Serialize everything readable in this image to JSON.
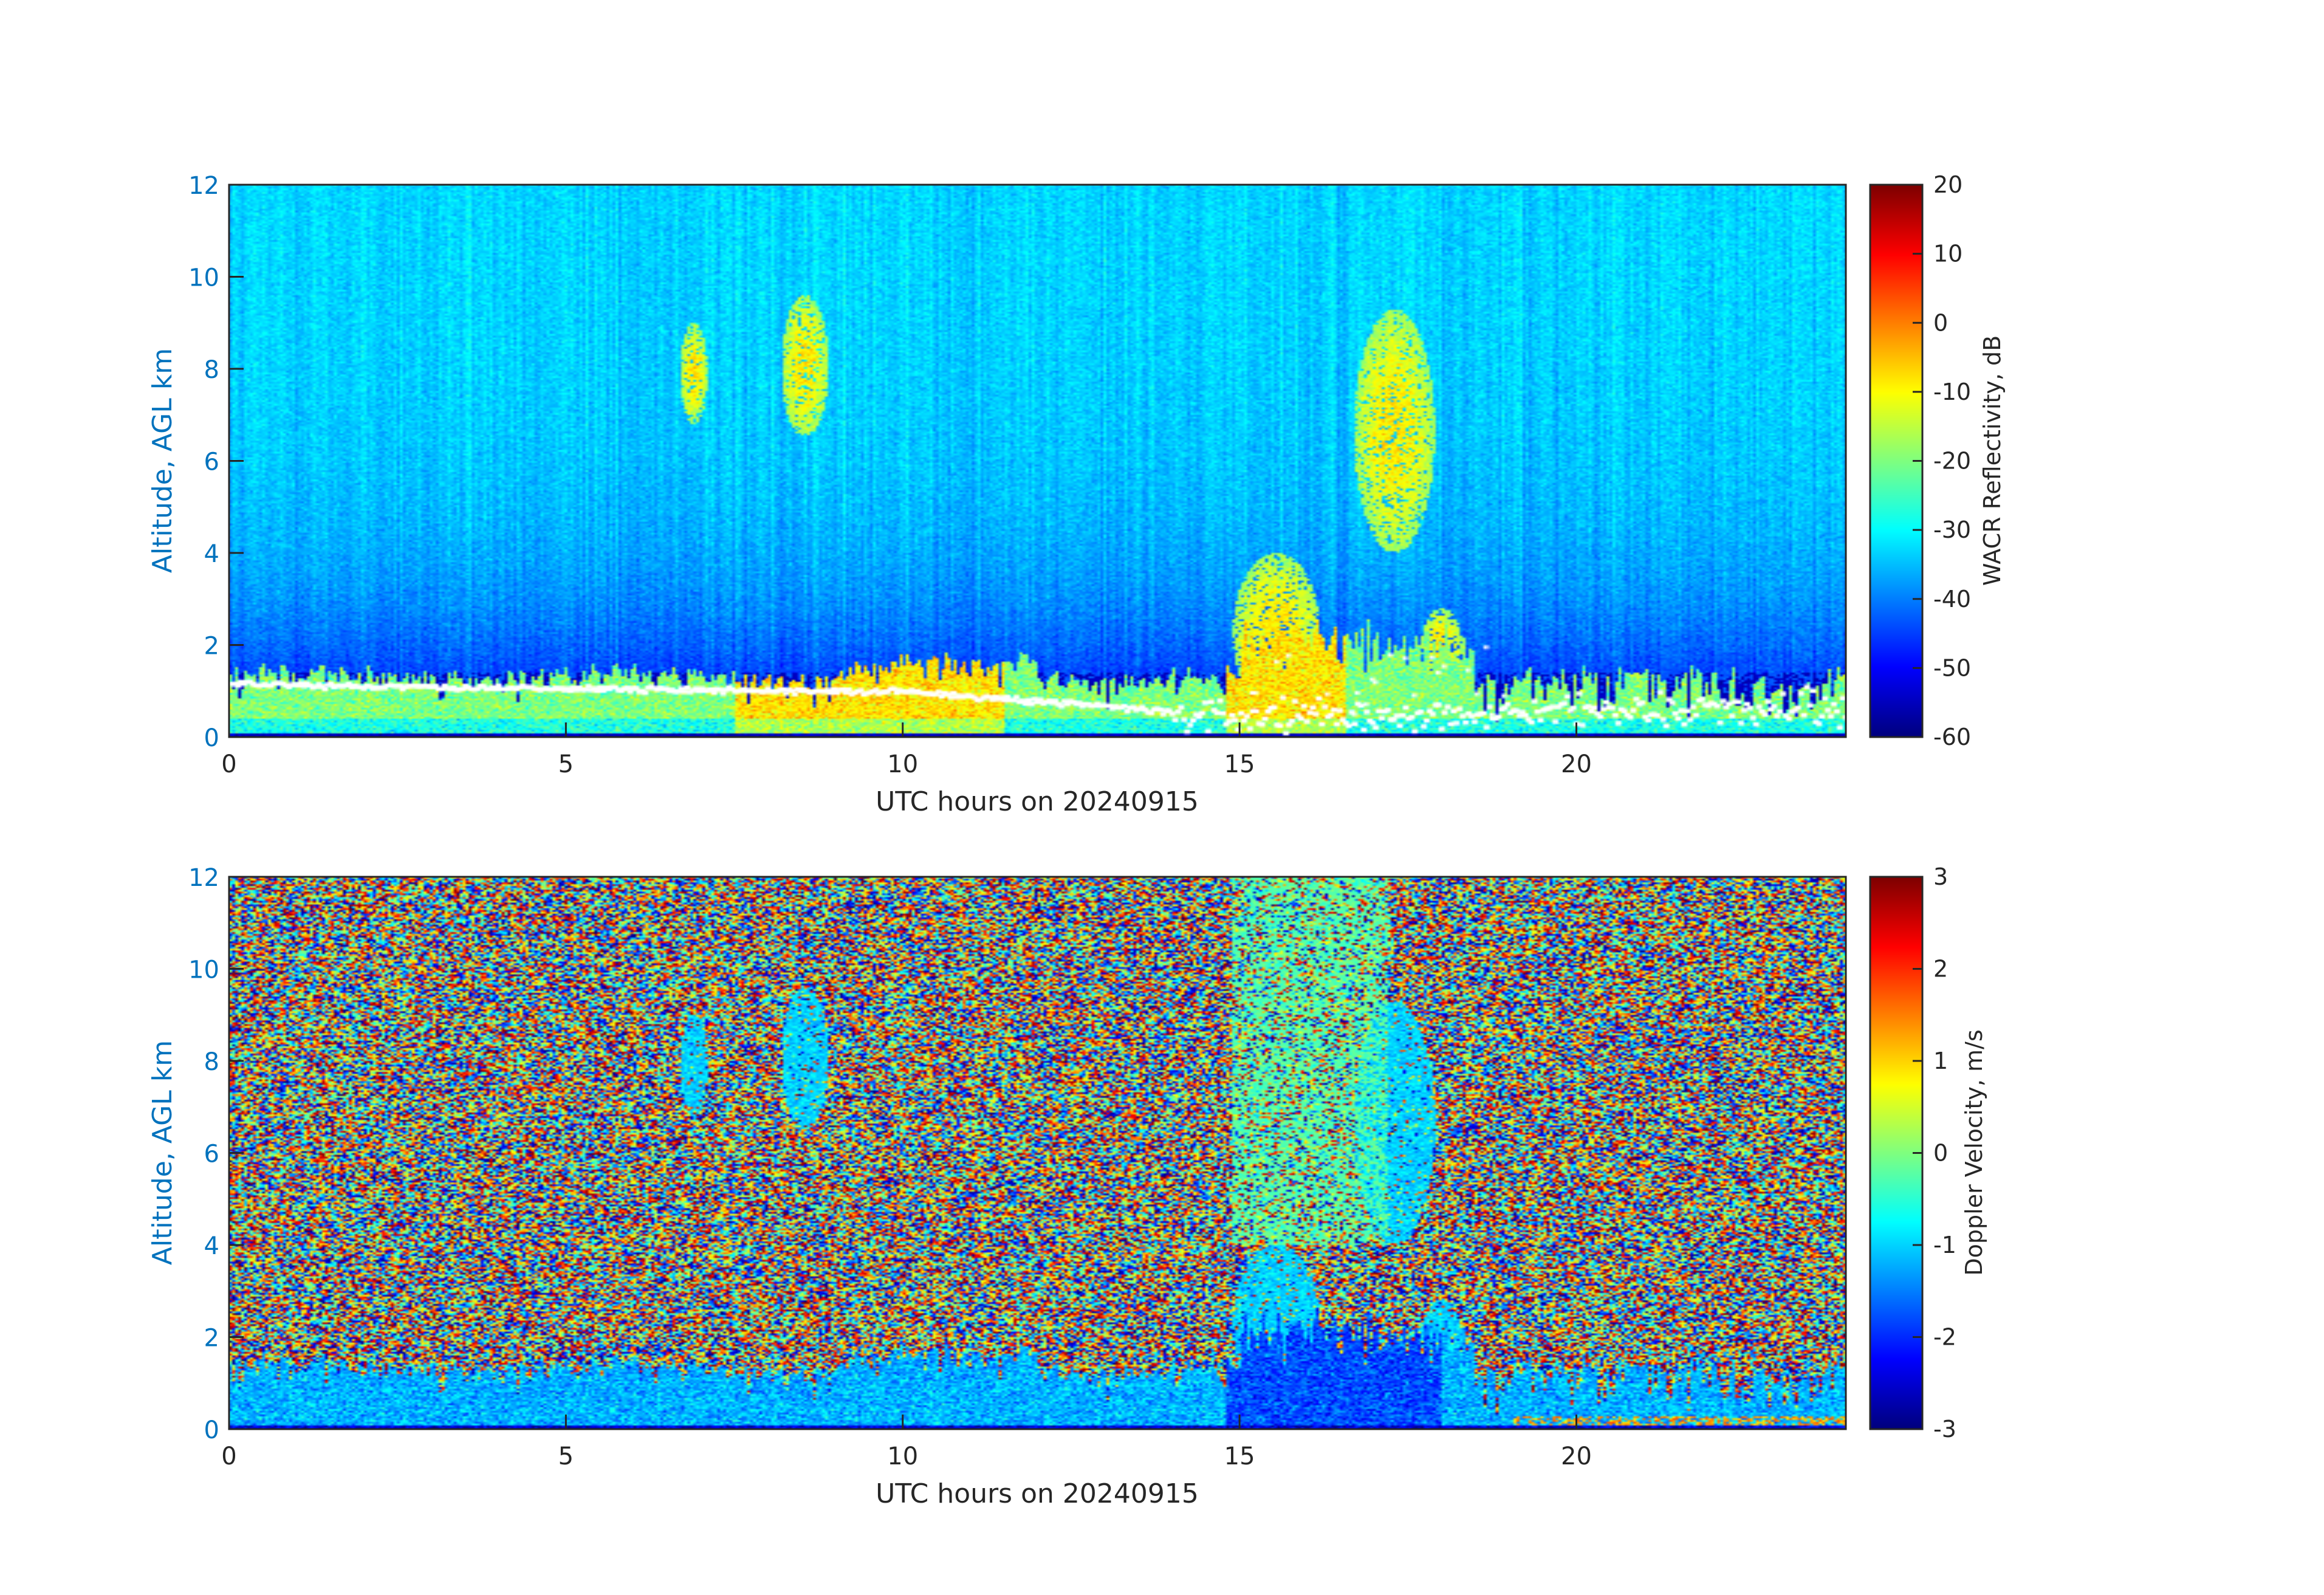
{
  "chart_data": [
    {
      "type": "heatmap",
      "title": "",
      "xlabel": "UTC hours on 20240915",
      "ylabel": "Altitude, AGL km",
      "xlim": [
        0,
        24
      ],
      "ylim": [
        0,
        12
      ],
      "x_ticks": [
        0,
        5,
        10,
        15,
        20
      ],
      "y_ticks": [
        0,
        2,
        4,
        6,
        8,
        10,
        12
      ],
      "colorbar": {
        "label": "WACR Reflectivity, dB",
        "range": [
          -60,
          20
        ],
        "ticks": [
          20,
          10,
          0,
          -10,
          -20,
          -30,
          -40,
          -50,
          -60
        ],
        "colormap": "jet"
      },
      "features": {
        "clear_sky_background_dB": -33,
        "boundary_layer_cloud_top_km": 1.3,
        "white_marker_series": "cloud base",
        "white_marker_base_heights_km": [
          [
            0,
            1.15
          ],
          [
            5,
            1.05
          ],
          [
            10,
            1.0
          ],
          [
            15,
            0.45
          ],
          [
            20,
            0.55
          ],
          [
            24,
            0.65
          ]
        ],
        "upper_cloud_events": [
          {
            "hours": [
              6.7,
              7.1
            ],
            "altitude_km": [
              6.8,
              9.0
            ]
          },
          {
            "hours": [
              8.2,
              8.9
            ],
            "altitude_km": [
              6.5,
              9.6
            ]
          },
          {
            "hours": [
              14.9,
              16.2
            ],
            "altitude_km": [
              0.5,
              4.0
            ]
          },
          {
            "hours": [
              16.7,
              17.9
            ],
            "altitude_km": [
              4.0,
              9.3
            ]
          },
          {
            "hours": [
              17.7,
              18.3
            ],
            "altitude_km": [
              1.2,
              2.8
            ]
          }
        ]
      }
    },
    {
      "type": "heatmap",
      "title": "",
      "xlabel": "UTC hours on 20240915",
      "ylabel": "Altitude, AGL km",
      "xlim": [
        0,
        24
      ],
      "ylim": [
        0,
        12
      ],
      "x_ticks": [
        0,
        5,
        10,
        15,
        20
      ],
      "y_ticks": [
        0,
        2,
        4,
        6,
        8,
        10,
        12
      ],
      "colorbar": {
        "label": "Doppler Velocity, m/s",
        "range": [
          -3,
          3
        ],
        "ticks": [
          3,
          2,
          1,
          0,
          -1,
          -2,
          -3
        ],
        "colormap": "jet"
      },
      "features": {
        "clear_sky": "random noise across full range",
        "cloud_velocity_m_s": -1.0,
        "low_cloud_top_km": 1.3,
        "precip_column_hours": [
          14.9,
          17.2
        ]
      }
    }
  ]
}
